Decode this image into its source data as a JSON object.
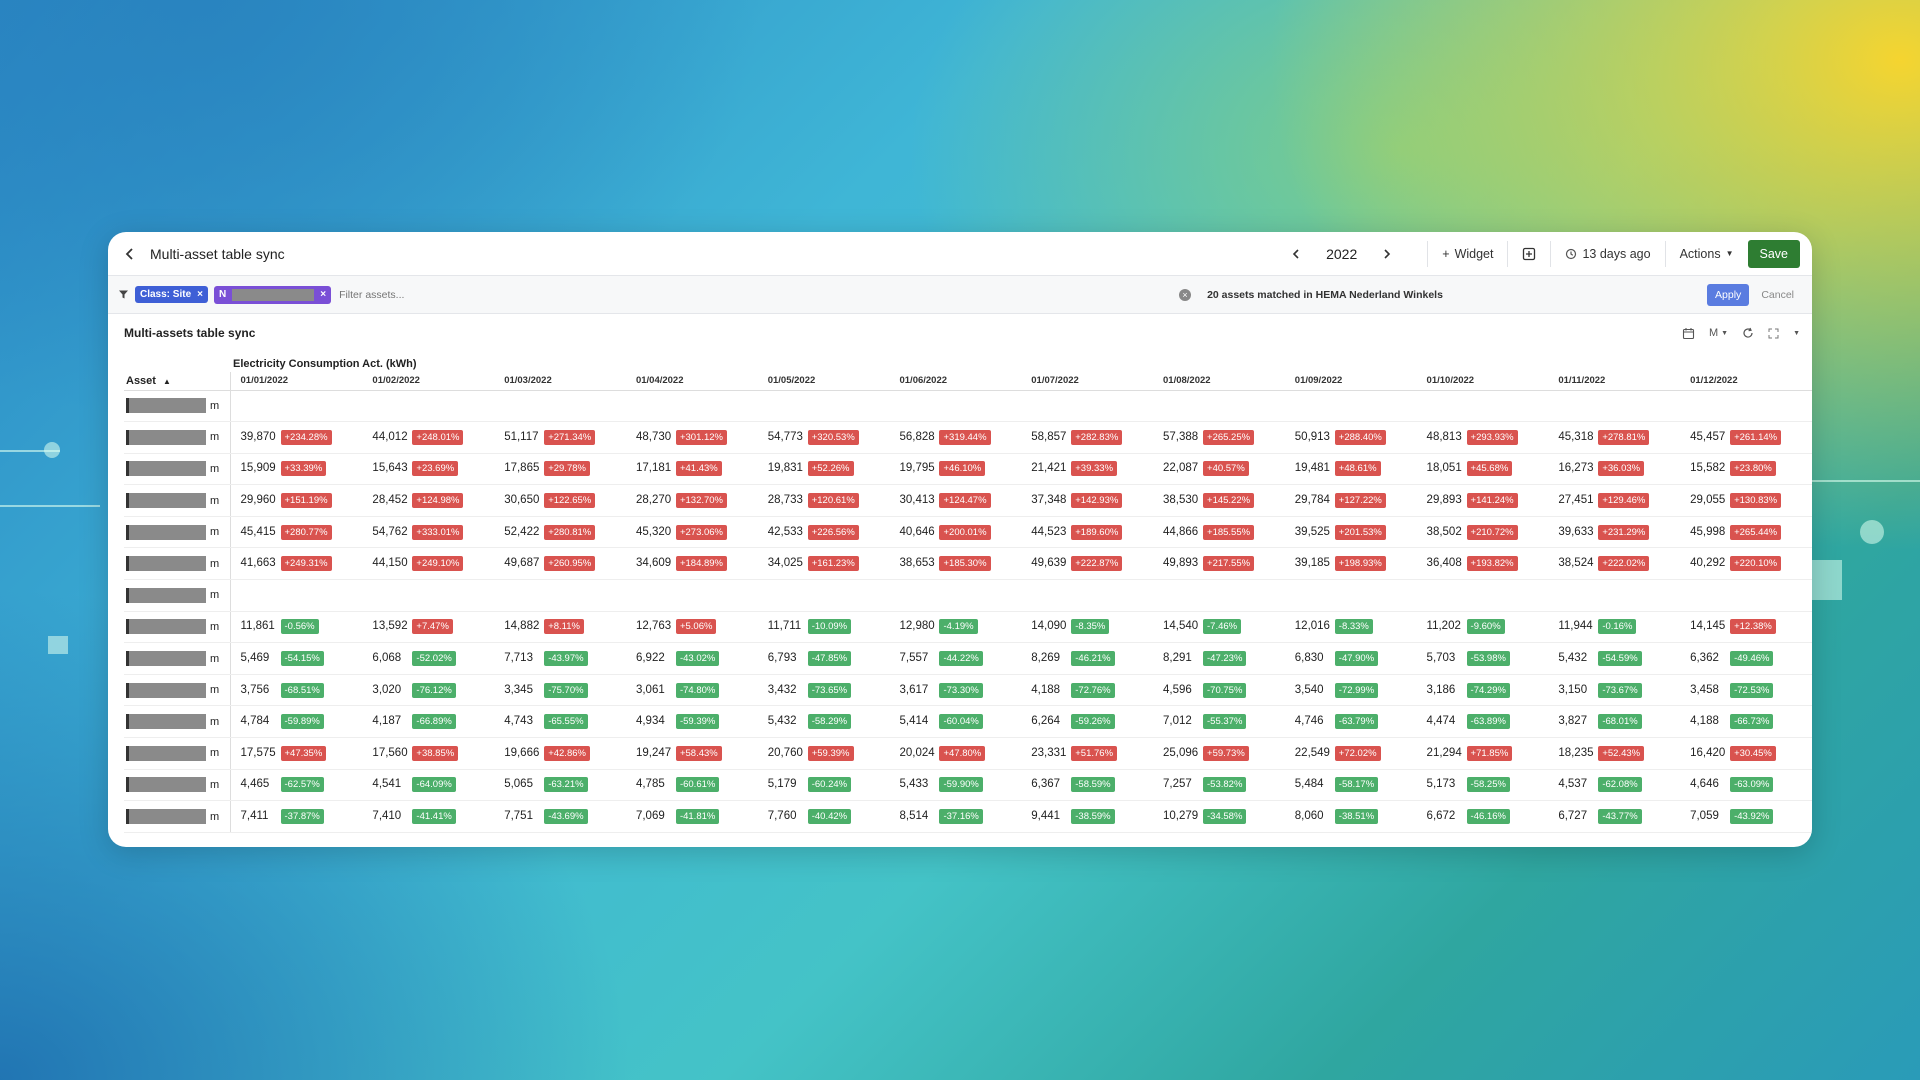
{
  "topbar": {
    "title": "Multi-asset table sync",
    "year": "2022",
    "widget_label": "Widget",
    "updated": "13 days ago",
    "actions_label": "Actions",
    "save_label": "Save"
  },
  "filterbar": {
    "chips": [
      {
        "label": "Class: Site"
      },
      {
        "label": "N"
      }
    ],
    "placeholder": "Filter assets...",
    "match_count": "20 assets matched in",
    "match_scope": "HEMA Nederland Winkels",
    "apply_label": "Apply",
    "cancel_label": "Cancel"
  },
  "widget": {
    "title": "Multi-assets table sync",
    "interval_label": "M",
    "metric": "Electricity Consumption Act. (kWh)",
    "asset_header": "Asset",
    "columns": [
      "01/01/2022",
      "01/02/2022",
      "01/03/2022",
      "01/04/2022",
      "01/05/2022",
      "01/06/2022",
      "01/07/2022",
      "01/08/2022",
      "01/09/2022",
      "01/10/2022",
      "01/11/2022",
      "01/12/2022"
    ],
    "rows": [
      {
        "prefix": "",
        "suffix": "m",
        "cells": []
      },
      {
        "prefix": "",
        "suffix": "m",
        "cells": [
          [
            "39,870",
            "+234.28%"
          ],
          [
            "44,012",
            "+248.01%"
          ],
          [
            "51,117",
            "+271.34%"
          ],
          [
            "48,730",
            "+301.12%"
          ],
          [
            "54,773",
            "+320.53%"
          ],
          [
            "56,828",
            "+319.44%"
          ],
          [
            "58,857",
            "+282.83%"
          ],
          [
            "57,388",
            "+265.25%"
          ],
          [
            "50,913",
            "+288.40%"
          ],
          [
            "48,813",
            "+293.93%"
          ],
          [
            "45,318",
            "+278.81%"
          ],
          [
            "45,457",
            "+261.14%"
          ]
        ]
      },
      {
        "prefix": "",
        "suffix": "m",
        "cells": [
          [
            "15,909",
            "+33.39%"
          ],
          [
            "15,643",
            "+23.69%"
          ],
          [
            "17,865",
            "+29.78%"
          ],
          [
            "17,181",
            "+41.43%"
          ],
          [
            "19,831",
            "+52.26%"
          ],
          [
            "19,795",
            "+46.10%"
          ],
          [
            "21,421",
            "+39.33%"
          ],
          [
            "22,087",
            "+40.57%"
          ],
          [
            "19,481",
            "+48.61%"
          ],
          [
            "18,051",
            "+45.68%"
          ],
          [
            "16,273",
            "+36.03%"
          ],
          [
            "15,582",
            "+23.80%"
          ]
        ]
      },
      {
        "prefix": "",
        "suffix": "m",
        "cells": [
          [
            "29,960",
            "+151.19%"
          ],
          [
            "28,452",
            "+124.98%"
          ],
          [
            "30,650",
            "+122.65%"
          ],
          [
            "28,270",
            "+132.70%"
          ],
          [
            "28,733",
            "+120.61%"
          ],
          [
            "30,413",
            "+124.47%"
          ],
          [
            "37,348",
            "+142.93%"
          ],
          [
            "38,530",
            "+145.22%"
          ],
          [
            "29,784",
            "+127.22%"
          ],
          [
            "29,893",
            "+141.24%"
          ],
          [
            "27,451",
            "+129.46%"
          ],
          [
            "29,055",
            "+130.83%"
          ]
        ]
      },
      {
        "prefix": "",
        "suffix": "m",
        "cells": [
          [
            "45,415",
            "+280.77%"
          ],
          [
            "54,762",
            "+333.01%"
          ],
          [
            "52,422",
            "+280.81%"
          ],
          [
            "45,320",
            "+273.06%"
          ],
          [
            "42,533",
            "+226.56%"
          ],
          [
            "40,646",
            "+200.01%"
          ],
          [
            "44,523",
            "+189.60%"
          ],
          [
            "44,866",
            "+185.55%"
          ],
          [
            "39,525",
            "+201.53%"
          ],
          [
            "38,502",
            "+210.72%"
          ],
          [
            "39,633",
            "+231.29%"
          ],
          [
            "45,998",
            "+265.44%"
          ]
        ]
      },
      {
        "prefix": "",
        "suffix": "m",
        "cells": [
          [
            "41,663",
            "+249.31%"
          ],
          [
            "44,150",
            "+249.10%"
          ],
          [
            "49,687",
            "+260.95%"
          ],
          [
            "34,609",
            "+184.89%"
          ],
          [
            "34,025",
            "+161.23%"
          ],
          [
            "38,653",
            "+185.30%"
          ],
          [
            "49,639",
            "+222.87%"
          ],
          [
            "49,893",
            "+217.55%"
          ],
          [
            "39,185",
            "+198.93%"
          ],
          [
            "36,408",
            "+193.82%"
          ],
          [
            "38,524",
            "+222.02%"
          ],
          [
            "40,292",
            "+220.10%"
          ]
        ]
      },
      {
        "prefix": "",
        "suffix": "m",
        "cells": []
      },
      {
        "prefix": "",
        "suffix": "m",
        "cells": [
          [
            "11,861",
            "-0.56%"
          ],
          [
            "13,592",
            "+7.47%"
          ],
          [
            "14,882",
            "+8.11%"
          ],
          [
            "12,763",
            "+5.06%"
          ],
          [
            "11,711",
            "-10.09%"
          ],
          [
            "12,980",
            "-4.19%"
          ],
          [
            "14,090",
            "-8.35%"
          ],
          [
            "14,540",
            "-7.46%"
          ],
          [
            "12,016",
            "-8.33%"
          ],
          [
            "11,202",
            "-9.60%"
          ],
          [
            "11,944",
            "-0.16%"
          ],
          [
            "14,145",
            "+12.38%"
          ]
        ]
      },
      {
        "prefix": "",
        "suffix": "m",
        "cells": [
          [
            "5,469",
            "-54.15%"
          ],
          [
            "6,068",
            "-52.02%"
          ],
          [
            "7,713",
            "-43.97%"
          ],
          [
            "6,922",
            "-43.02%"
          ],
          [
            "6,793",
            "-47.85%"
          ],
          [
            "7,557",
            "-44.22%"
          ],
          [
            "8,269",
            "-46.21%"
          ],
          [
            "8,291",
            "-47.23%"
          ],
          [
            "6,830",
            "-47.90%"
          ],
          [
            "5,703",
            "-53.98%"
          ],
          [
            "5,432",
            "-54.59%"
          ],
          [
            "6,362",
            "-49.46%"
          ]
        ]
      },
      {
        "prefix": "",
        "suffix": "m",
        "cells": [
          [
            "3,756",
            "-68.51%"
          ],
          [
            "3,020",
            "-76.12%"
          ],
          [
            "3,345",
            "-75.70%"
          ],
          [
            "3,061",
            "-74.80%"
          ],
          [
            "3,432",
            "-73.65%"
          ],
          [
            "3,617",
            "-73.30%"
          ],
          [
            "4,188",
            "-72.76%"
          ],
          [
            "4,596",
            "-70.75%"
          ],
          [
            "3,540",
            "-72.99%"
          ],
          [
            "3,186",
            "-74.29%"
          ],
          [
            "3,150",
            "-73.67%"
          ],
          [
            "3,458",
            "-72.53%"
          ]
        ]
      },
      {
        "prefix": "",
        "suffix": "m",
        "cells": [
          [
            "4,784",
            "-59.89%"
          ],
          [
            "4,187",
            "-66.89%"
          ],
          [
            "4,743",
            "-65.55%"
          ],
          [
            "4,934",
            "-59.39%"
          ],
          [
            "5,432",
            "-58.29%"
          ],
          [
            "5,414",
            "-60.04%"
          ],
          [
            "6,264",
            "-59.26%"
          ],
          [
            "7,012",
            "-55.37%"
          ],
          [
            "4,746",
            "-63.79%"
          ],
          [
            "4,474",
            "-63.89%"
          ],
          [
            "3,827",
            "-68.01%"
          ],
          [
            "4,188",
            "-66.73%"
          ]
        ]
      },
      {
        "prefix": "",
        "suffix": "m",
        "cells": [
          [
            "17,575",
            "+47.35%"
          ],
          [
            "17,560",
            "+38.85%"
          ],
          [
            "19,666",
            "+42.86%"
          ],
          [
            "19,247",
            "+58.43%"
          ],
          [
            "20,760",
            "+59.39%"
          ],
          [
            "20,024",
            "+47.80%"
          ],
          [
            "23,331",
            "+51.76%"
          ],
          [
            "25,096",
            "+59.73%"
          ],
          [
            "22,549",
            "+72.02%"
          ],
          [
            "21,294",
            "+71.85%"
          ],
          [
            "18,235",
            "+52.43%"
          ],
          [
            "16,420",
            "+30.45%"
          ]
        ]
      },
      {
        "prefix": "",
        "suffix": "m",
        "cells": [
          [
            "4,465",
            "-62.57%"
          ],
          [
            "4,541",
            "-64.09%"
          ],
          [
            "5,065",
            "-63.21%"
          ],
          [
            "4,785",
            "-60.61%"
          ],
          [
            "5,179",
            "-60.24%"
          ],
          [
            "5,433",
            "-59.90%"
          ],
          [
            "6,367",
            "-58.59%"
          ],
          [
            "7,257",
            "-53.82%"
          ],
          [
            "5,484",
            "-58.17%"
          ],
          [
            "5,173",
            "-58.25%"
          ],
          [
            "4,537",
            "-62.08%"
          ],
          [
            "4,646",
            "-63.09%"
          ]
        ]
      },
      {
        "prefix": "",
        "suffix": "m",
        "cells": [
          [
            "7,411",
            "-37.87%"
          ],
          [
            "7,410",
            "-41.41%"
          ],
          [
            "7,751",
            "-43.69%"
          ],
          [
            "7,069",
            "-41.81%"
          ],
          [
            "7,760",
            "-40.42%"
          ],
          [
            "8,514",
            "-37.16%"
          ],
          [
            "9,441",
            "-38.59%"
          ],
          [
            "10,279",
            "-34.58%"
          ],
          [
            "8,060",
            "-38.51%"
          ],
          [
            "6,672",
            "-46.16%"
          ],
          [
            "6,727",
            "-43.77%"
          ],
          [
            "7,059",
            "-43.92%"
          ]
        ]
      }
    ]
  },
  "colors": {
    "increase": "#d9534f",
    "decrease": "#4caf6a",
    "save": "#2e7d32",
    "chip_class": "#3e5fd6",
    "chip_name": "#7a4fd6"
  },
  "icons": [
    "back-arrow-icon",
    "chevron-left-icon",
    "chevron-right-icon",
    "plus-icon",
    "add-box-icon",
    "history-icon",
    "caret-down-icon",
    "filter-icon",
    "clear-icon",
    "calendar-sync-icon",
    "refresh-icon",
    "expand-icon",
    "sort-icon"
  ]
}
